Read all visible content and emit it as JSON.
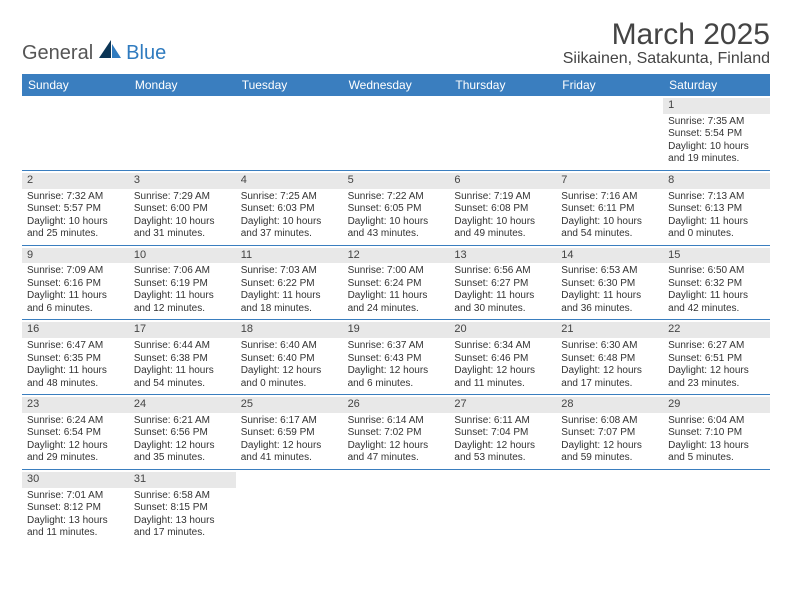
{
  "logo": {
    "general": "General",
    "blue": "Blue"
  },
  "header": {
    "month_title": "March 2025",
    "location": "Siikainen, Satakunta, Finland"
  },
  "colors": {
    "header_bg": "#3a7ebf",
    "header_text": "#ffffff",
    "daynum_bg": "#e8e8e8",
    "row_border": "#3a7ebf",
    "body_text": "#333333",
    "logo_blue": "#2f7bbf",
    "logo_dark": "#0b3556"
  },
  "daynames": [
    "Sunday",
    "Monday",
    "Tuesday",
    "Wednesday",
    "Thursday",
    "Friday",
    "Saturday"
  ],
  "weeks": [
    [
      null,
      null,
      null,
      null,
      null,
      null,
      {
        "n": "1",
        "sr": "Sunrise: 7:35 AM",
        "ss": "Sunset: 5:54 PM",
        "dl": "Daylight: 10 hours and 19 minutes."
      }
    ],
    [
      {
        "n": "2",
        "sr": "Sunrise: 7:32 AM",
        "ss": "Sunset: 5:57 PM",
        "dl": "Daylight: 10 hours and 25 minutes."
      },
      {
        "n": "3",
        "sr": "Sunrise: 7:29 AM",
        "ss": "Sunset: 6:00 PM",
        "dl": "Daylight: 10 hours and 31 minutes."
      },
      {
        "n": "4",
        "sr": "Sunrise: 7:25 AM",
        "ss": "Sunset: 6:03 PM",
        "dl": "Daylight: 10 hours and 37 minutes."
      },
      {
        "n": "5",
        "sr": "Sunrise: 7:22 AM",
        "ss": "Sunset: 6:05 PM",
        "dl": "Daylight: 10 hours and 43 minutes."
      },
      {
        "n": "6",
        "sr": "Sunrise: 7:19 AM",
        "ss": "Sunset: 6:08 PM",
        "dl": "Daylight: 10 hours and 49 minutes."
      },
      {
        "n": "7",
        "sr": "Sunrise: 7:16 AM",
        "ss": "Sunset: 6:11 PM",
        "dl": "Daylight: 10 hours and 54 minutes."
      },
      {
        "n": "8",
        "sr": "Sunrise: 7:13 AM",
        "ss": "Sunset: 6:13 PM",
        "dl": "Daylight: 11 hours and 0 minutes."
      }
    ],
    [
      {
        "n": "9",
        "sr": "Sunrise: 7:09 AM",
        "ss": "Sunset: 6:16 PM",
        "dl": "Daylight: 11 hours and 6 minutes."
      },
      {
        "n": "10",
        "sr": "Sunrise: 7:06 AM",
        "ss": "Sunset: 6:19 PM",
        "dl": "Daylight: 11 hours and 12 minutes."
      },
      {
        "n": "11",
        "sr": "Sunrise: 7:03 AM",
        "ss": "Sunset: 6:22 PM",
        "dl": "Daylight: 11 hours and 18 minutes."
      },
      {
        "n": "12",
        "sr": "Sunrise: 7:00 AM",
        "ss": "Sunset: 6:24 PM",
        "dl": "Daylight: 11 hours and 24 minutes."
      },
      {
        "n": "13",
        "sr": "Sunrise: 6:56 AM",
        "ss": "Sunset: 6:27 PM",
        "dl": "Daylight: 11 hours and 30 minutes."
      },
      {
        "n": "14",
        "sr": "Sunrise: 6:53 AM",
        "ss": "Sunset: 6:30 PM",
        "dl": "Daylight: 11 hours and 36 minutes."
      },
      {
        "n": "15",
        "sr": "Sunrise: 6:50 AM",
        "ss": "Sunset: 6:32 PM",
        "dl": "Daylight: 11 hours and 42 minutes."
      }
    ],
    [
      {
        "n": "16",
        "sr": "Sunrise: 6:47 AM",
        "ss": "Sunset: 6:35 PM",
        "dl": "Daylight: 11 hours and 48 minutes."
      },
      {
        "n": "17",
        "sr": "Sunrise: 6:44 AM",
        "ss": "Sunset: 6:38 PM",
        "dl": "Daylight: 11 hours and 54 minutes."
      },
      {
        "n": "18",
        "sr": "Sunrise: 6:40 AM",
        "ss": "Sunset: 6:40 PM",
        "dl": "Daylight: 12 hours and 0 minutes."
      },
      {
        "n": "19",
        "sr": "Sunrise: 6:37 AM",
        "ss": "Sunset: 6:43 PM",
        "dl": "Daylight: 12 hours and 6 minutes."
      },
      {
        "n": "20",
        "sr": "Sunrise: 6:34 AM",
        "ss": "Sunset: 6:46 PM",
        "dl": "Daylight: 12 hours and 11 minutes."
      },
      {
        "n": "21",
        "sr": "Sunrise: 6:30 AM",
        "ss": "Sunset: 6:48 PM",
        "dl": "Daylight: 12 hours and 17 minutes."
      },
      {
        "n": "22",
        "sr": "Sunrise: 6:27 AM",
        "ss": "Sunset: 6:51 PM",
        "dl": "Daylight: 12 hours and 23 minutes."
      }
    ],
    [
      {
        "n": "23",
        "sr": "Sunrise: 6:24 AM",
        "ss": "Sunset: 6:54 PM",
        "dl": "Daylight: 12 hours and 29 minutes."
      },
      {
        "n": "24",
        "sr": "Sunrise: 6:21 AM",
        "ss": "Sunset: 6:56 PM",
        "dl": "Daylight: 12 hours and 35 minutes."
      },
      {
        "n": "25",
        "sr": "Sunrise: 6:17 AM",
        "ss": "Sunset: 6:59 PM",
        "dl": "Daylight: 12 hours and 41 minutes."
      },
      {
        "n": "26",
        "sr": "Sunrise: 6:14 AM",
        "ss": "Sunset: 7:02 PM",
        "dl": "Daylight: 12 hours and 47 minutes."
      },
      {
        "n": "27",
        "sr": "Sunrise: 6:11 AM",
        "ss": "Sunset: 7:04 PM",
        "dl": "Daylight: 12 hours and 53 minutes."
      },
      {
        "n": "28",
        "sr": "Sunrise: 6:08 AM",
        "ss": "Sunset: 7:07 PM",
        "dl": "Daylight: 12 hours and 59 minutes."
      },
      {
        "n": "29",
        "sr": "Sunrise: 6:04 AM",
        "ss": "Sunset: 7:10 PM",
        "dl": "Daylight: 13 hours and 5 minutes."
      }
    ],
    [
      {
        "n": "30",
        "sr": "Sunrise: 7:01 AM",
        "ss": "Sunset: 8:12 PM",
        "dl": "Daylight: 13 hours and 11 minutes."
      },
      {
        "n": "31",
        "sr": "Sunrise: 6:58 AM",
        "ss": "Sunset: 8:15 PM",
        "dl": "Daylight: 13 hours and 17 minutes."
      },
      null,
      null,
      null,
      null,
      null
    ]
  ]
}
